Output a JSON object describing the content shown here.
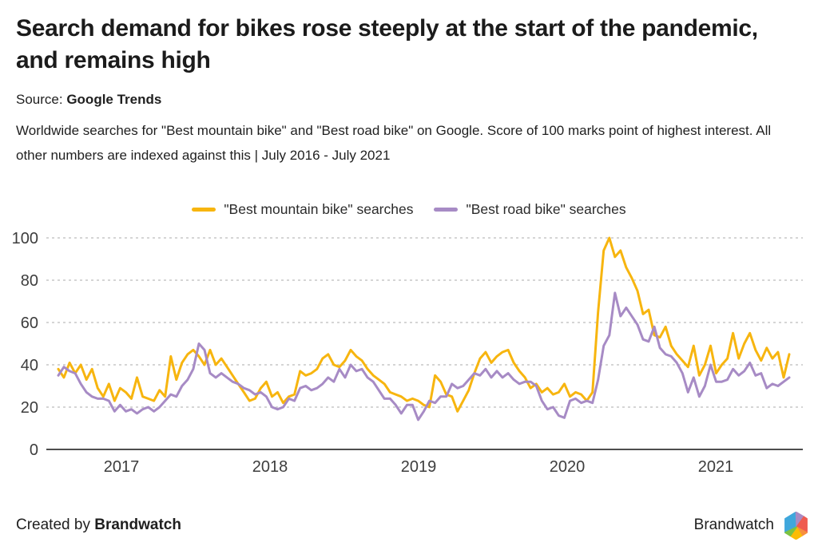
{
  "header": {
    "title": "Search demand for bikes rose steeply at the start of the pandemic, and remains high",
    "source_label": "Source:",
    "source_value": "Google Trends",
    "description": "Worldwide searches for \"Best mountain bike\" and \"Best road bike\" on Google. Score of 100 marks point of highest interest. All other numbers are indexed against this | July 2016 - July 2021"
  },
  "legend": [
    {
      "label": "\"Best mountain bike\" searches",
      "color": "#F7B50F"
    },
    {
      "label": "\"Best road bike\" searches",
      "color": "#A78BC5"
    }
  ],
  "chart_data": {
    "type": "line",
    "title": "",
    "xlabel": "",
    "ylabel": "",
    "x_range": [
      "July 2016",
      "July 2021"
    ],
    "points_per_series": 131,
    "ylim": [
      0,
      100
    ],
    "y_ticks": [
      0,
      20,
      40,
      60,
      80,
      100
    ],
    "grid": "horizontal-dashed",
    "legend_position": "top-center",
    "x_ticks": [
      {
        "label": "2017",
        "f": 0.0863
      },
      {
        "label": "2018",
        "f": 0.2896
      },
      {
        "label": "2019",
        "f": 0.4929
      },
      {
        "label": "2020",
        "f": 0.6962
      },
      {
        "label": "2021",
        "f": 0.8995
      }
    ],
    "series": [
      {
        "name": "\"Best mountain bike\" searches",
        "color": "#F7B50F",
        "values": [
          38,
          34,
          41,
          36,
          40,
          33,
          38,
          29,
          25,
          31,
          23,
          29,
          27,
          24,
          34,
          25,
          24,
          23,
          28,
          25,
          44,
          33,
          41,
          45,
          47,
          44,
          40,
          47,
          40,
          43,
          39,
          35,
          31,
          27,
          23,
          24,
          29,
          32,
          25,
          27,
          22,
          25,
          26,
          37,
          35,
          36,
          38,
          43,
          45,
          40,
          39,
          42,
          47,
          44,
          42,
          38,
          35,
          33,
          31,
          27,
          26,
          25,
          23,
          24,
          23,
          21,
          20,
          35,
          32,
          26,
          25,
          18,
          23,
          28,
          36,
          43,
          46,
          41,
          44,
          46,
          47,
          41,
          37,
          34,
          29,
          31,
          27,
          29,
          26,
          27,
          31,
          25,
          27,
          26,
          23,
          27,
          65,
          94,
          100,
          91,
          94,
          86,
          81,
          75,
          64,
          66,
          54,
          53,
          58,
          49,
          45,
          42,
          39,
          49,
          35,
          40,
          49,
          36,
          40,
          43,
          55,
          43,
          50,
          55,
          47,
          42,
          48,
          43,
          46,
          34,
          45
        ]
      },
      {
        "name": "\"Best road bike\" searches",
        "color": "#A78BC5",
        "values": [
          35,
          39,
          37,
          36,
          31,
          27,
          25,
          24,
          24,
          23,
          18,
          21,
          18,
          19,
          17,
          19,
          20,
          18,
          20,
          23,
          26,
          25,
          30,
          33,
          38,
          50,
          47,
          36,
          34,
          36,
          34,
          32,
          31,
          29,
          28,
          26,
          27,
          25,
          20,
          19,
          20,
          24,
          23,
          29,
          30,
          28,
          29,
          31,
          34,
          32,
          38,
          34,
          40,
          37,
          38,
          34,
          32,
          28,
          24,
          24,
          21,
          17,
          21,
          21,
          14,
          18,
          23,
          22,
          25,
          25,
          31,
          29,
          30,
          33,
          36,
          35,
          38,
          34,
          37,
          34,
          36,
          33,
          31,
          32,
          32,
          30,
          23,
          19,
          20,
          16,
          15,
          23,
          24,
          22,
          23,
          22,
          33,
          49,
          54,
          74,
          63,
          67,
          63,
          59,
          52,
          51,
          58,
          48,
          45,
          44,
          41,
          36,
          27,
          34,
          25,
          30,
          40,
          32,
          32,
          33,
          38,
          35,
          37,
          41,
          35,
          36,
          29,
          31,
          30,
          32,
          34
        ]
      }
    ]
  },
  "footer": {
    "created_by_label": "Created by",
    "created_by_value": "Brandwatch",
    "brand_name": "Brandwatch",
    "logo_colors": {
      "blue": "#3FA7DC",
      "purple": "#A98BC4",
      "red": "#EF5B50",
      "orange": "#F78F3F",
      "yellow": "#FBBC05",
      "green": "#7DC242"
    }
  }
}
